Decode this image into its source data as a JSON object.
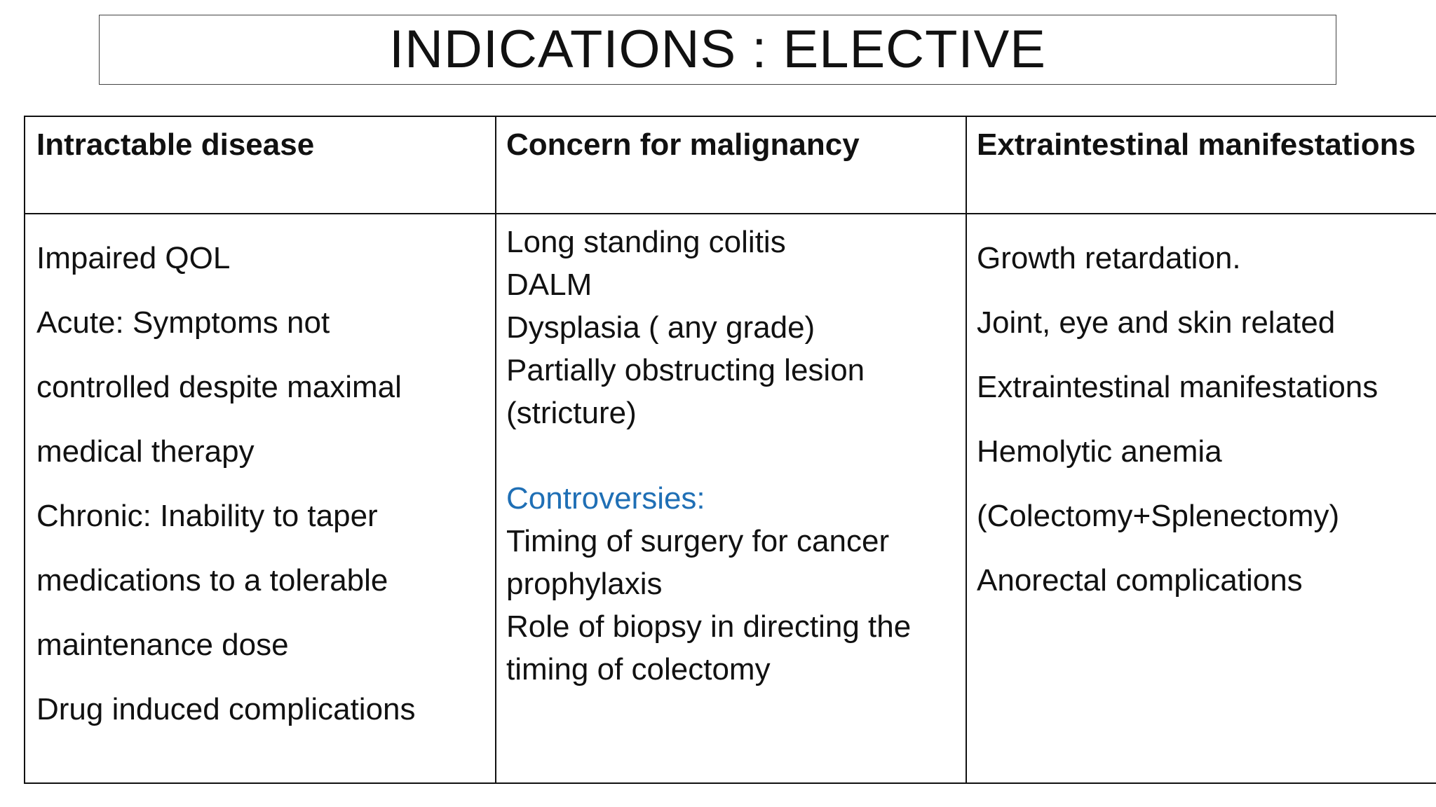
{
  "title": "INDICATIONS : ELECTIVE",
  "columns": [
    {
      "header": "Intractable disease",
      "lines": [
        "Impaired QOL",
        "Acute: Symptoms not",
        "controlled despite maximal",
        "medical therapy",
        "Chronic:  Inability to taper",
        "medications to a tolerable",
        "maintenance dose",
        "Drug induced complications"
      ]
    },
    {
      "header": "Concern for malignancy",
      "lines": [
        "Long standing colitis",
        "DALM",
        "Dysplasia ( any grade)",
        "Partially obstructing lesion",
        "(stricture)"
      ],
      "controversies_label": "Controversies:",
      "controversies_lines": [
        "Timing of surgery for cancer",
        "prophylaxis",
        "Role of biopsy in directing the",
        "timing of colectomy"
      ]
    },
    {
      "header": "Extraintestinal manifestations",
      "lines": [
        "Growth retardation.",
        "Joint, eye and skin related",
        "Extraintestinal manifestations",
        "Hemolytic anemia",
        "(Colectomy+Splenectomy)",
        "Anorectal complications"
      ]
    }
  ],
  "colors": {
    "accent": "#1f6fb5",
    "text": "#111111",
    "border": "#111111"
  }
}
